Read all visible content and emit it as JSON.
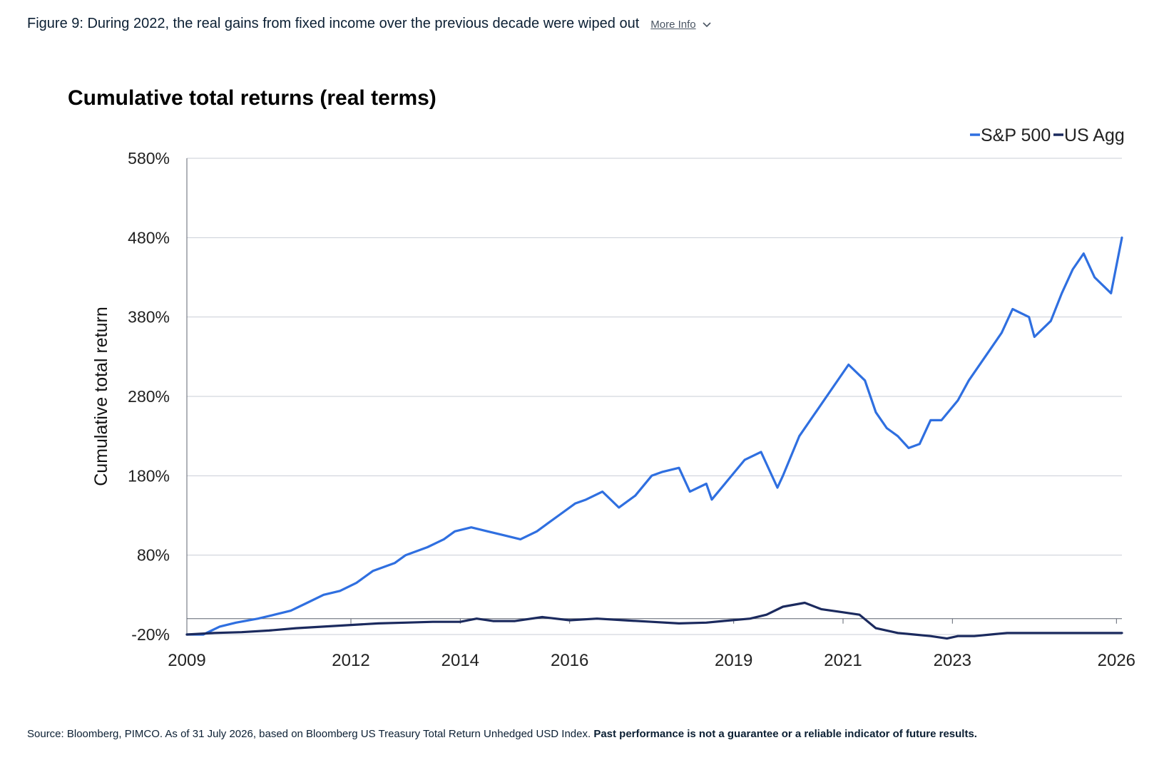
{
  "figure": {
    "caption": "Figure 9: During 2022, the real gains from fixed income over the previous decade were wiped out",
    "more_info": "More Info"
  },
  "source": {
    "text": "Source: Bloomberg, PIMCO. As of 31 July 2026, based on Bloomberg US Treasury Total Return Unhedged USD Index.",
    "disclaimer": "Past performance is not a guarantee or a reliable indicator of future results."
  },
  "colors": {
    "sp500": "#2f6fe0",
    "us_agg": "#1b2a5e",
    "grid": "#c9cdd6",
    "axis": "#5f6470"
  },
  "chart_data": {
    "type": "line",
    "title": "Cumulative total returns (real terms)",
    "xlabel": "",
    "ylabel": "Cumulative total return",
    "ylim": [
      -20,
      580
    ],
    "yticks": [
      -20,
      80,
      180,
      280,
      380,
      480,
      580
    ],
    "ytick_labels": [
      "-20%",
      "80%",
      "180%",
      "280%",
      "380%",
      "480%",
      "580%"
    ],
    "xlim": [
      2009.0,
      2026.1
    ],
    "xticks": [
      2009,
      2012,
      2014,
      2016,
      2019,
      2021,
      2023,
      2026
    ],
    "xtick_labels": [
      "2009",
      "2012",
      "2014",
      "2016",
      "2019",
      "2021",
      "2023",
      "2026"
    ],
    "grid": true,
    "legend": "top-right",
    "series": [
      {
        "name": "S&P 500",
        "x": [
          2009.0,
          2009.3,
          2009.6,
          2009.9,
          2010.3,
          2010.6,
          2010.9,
          2011.2,
          2011.5,
          2011.8,
          2012.1,
          2012.4,
          2012.8,
          2013.0,
          2013.4,
          2013.7,
          2013.9,
          2014.2,
          2014.5,
          2014.8,
          2015.1,
          2015.4,
          2015.6,
          2015.8,
          2016.1,
          2016.3,
          2016.6,
          2016.9,
          2017.2,
          2017.5,
          2017.7,
          2018.0,
          2018.2,
          2018.5,
          2018.6,
          2018.9,
          2019.2,
          2019.5,
          2019.8,
          2019.9,
          2020.2,
          2020.5,
          2020.8,
          2021.1,
          2021.4,
          2021.6,
          2021.8,
          2022.0,
          2022.2,
          2022.4,
          2022.6,
          2022.8,
          2023.1,
          2023.3,
          2023.6,
          2023.9,
          2024.1,
          2024.4,
          2024.5,
          2024.8,
          2025.0,
          2025.2,
          2025.4,
          2025.6,
          2025.9,
          2026.1
        ],
        "y": [
          -20,
          -20,
          -10,
          -5,
          0,
          5,
          10,
          20,
          30,
          35,
          45,
          60,
          70,
          80,
          90,
          100,
          110,
          115,
          110,
          105,
          100,
          110,
          120,
          130,
          145,
          150,
          160,
          140,
          155,
          180,
          185,
          190,
          160,
          170,
          150,
          175,
          200,
          210,
          165,
          180,
          230,
          260,
          290,
          320,
          300,
          260,
          240,
          230,
          215,
          220,
          250,
          250,
          275,
          300,
          330,
          360,
          390,
          380,
          355,
          375,
          410,
          440,
          460,
          430,
          410,
          480
        ]
      },
      {
        "name": "US Agg",
        "x": [
          2009.0,
          2009.5,
          2010.0,
          2010.5,
          2011.0,
          2011.5,
          2012.0,
          2012.5,
          2013.0,
          2013.5,
          2014.0,
          2014.3,
          2014.6,
          2015.0,
          2015.5,
          2016.0,
          2016.5,
          2017.0,
          2017.5,
          2018.0,
          2018.5,
          2018.8,
          2019.3,
          2019.6,
          2019.9,
          2020.3,
          2020.6,
          2021.0,
          2021.3,
          2021.6,
          2022.0,
          2022.3,
          2022.6,
          2022.9,
          2023.1,
          2023.4,
          2023.7,
          2024.0,
          2024.3,
          2024.6,
          2025.0,
          2025.3,
          2025.6,
          2026.1
        ],
        "y": [
          -20,
          -18,
          -17,
          -15,
          -12,
          -10,
          -8,
          -6,
          -5,
          -4,
          -4,
          0,
          -3,
          -3,
          2,
          -2,
          0,
          -2,
          -4,
          -6,
          -5,
          -3,
          0,
          5,
          15,
          20,
          12,
          8,
          5,
          -12,
          -18,
          -20,
          -22,
          -25,
          -22,
          -22,
          -20,
          -18,
          -18,
          -18,
          -18,
          -18,
          -18,
          -18
        ]
      }
    ]
  }
}
